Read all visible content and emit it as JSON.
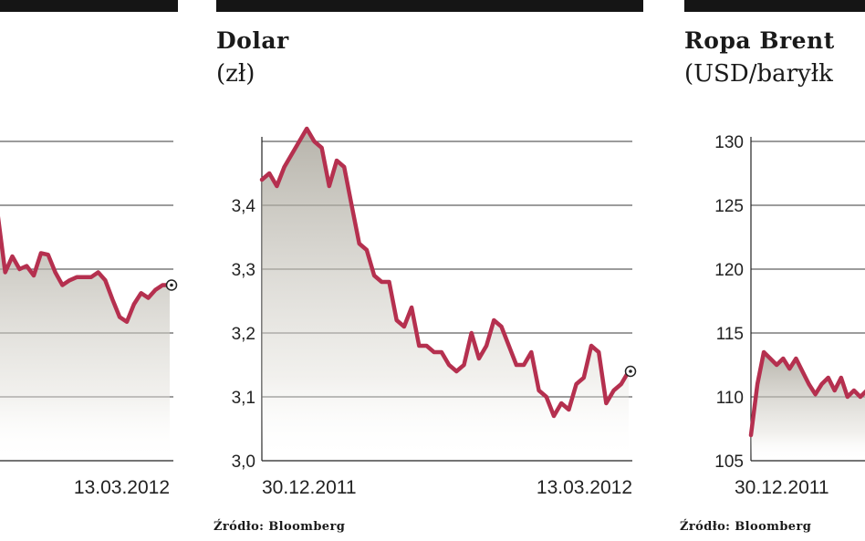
{
  "chart_data": [
    {
      "type": "area",
      "title": "",
      "unit": "",
      "source": "",
      "x_labels": [
        "",
        "13.03.2012"
      ],
      "yticks": [],
      "ylim": [
        0.8,
        1.0
      ],
      "grid": true,
      "series": [
        {
          "color": "#b5304f",
          "values": [
            0.965,
            0.953,
            0.918,
            0.928,
            0.92,
            0.922,
            0.916,
            0.93,
            0.929,
            0.918,
            0.91,
            0.913,
            0.915,
            0.915,
            0.915,
            0.918,
            0.913,
            0.901,
            0.89,
            0.887,
            0.898,
            0.905,
            0.902,
            0.907,
            0.91,
            0.91
          ]
        }
      ]
    },
    {
      "type": "area",
      "title": "Dolar",
      "unit": "(zł)",
      "source": "Źródło: Bloomberg",
      "x_labels": [
        "30.12.2011",
        "13.03.2012"
      ],
      "yticks": [
        "3,0",
        "3,1",
        "3,2",
        "3,3",
        "3,4"
      ],
      "ylim": [
        3.0,
        3.5
      ],
      "grid": true,
      "series": [
        {
          "color": "#b5304f",
          "values": [
            3.44,
            3.45,
            3.43,
            3.46,
            3.48,
            3.5,
            3.52,
            3.5,
            3.49,
            3.43,
            3.47,
            3.46,
            3.4,
            3.34,
            3.33,
            3.29,
            3.28,
            3.28,
            3.22,
            3.21,
            3.24,
            3.18,
            3.18,
            3.17,
            3.17,
            3.15,
            3.14,
            3.15,
            3.2,
            3.16,
            3.18,
            3.22,
            3.21,
            3.18,
            3.15,
            3.15,
            3.17,
            3.11,
            3.1,
            3.07,
            3.09,
            3.08,
            3.12,
            3.13,
            3.18,
            3.17,
            3.09,
            3.11,
            3.12,
            3.14
          ]
        }
      ]
    },
    {
      "type": "area",
      "title": "Ropa Brent",
      "unit": "(USD/baryłk",
      "source": "Źródło: Bloomberg",
      "x_labels": [
        "30.12.2011"
      ],
      "yticks": [
        "105",
        "110",
        "115",
        "120",
        "125",
        "130"
      ],
      "ylim": [
        105,
        130
      ],
      "grid": true,
      "series": [
        {
          "color": "#b5304f",
          "values": [
            107.0,
            111.0,
            113.5,
            113.0,
            112.5,
            113.0,
            112.2,
            113.0,
            112.0,
            111.0,
            110.2,
            111.0,
            111.5,
            110.5,
            111.5,
            110.0,
            110.5,
            110.0,
            110.5
          ]
        }
      ]
    }
  ]
}
